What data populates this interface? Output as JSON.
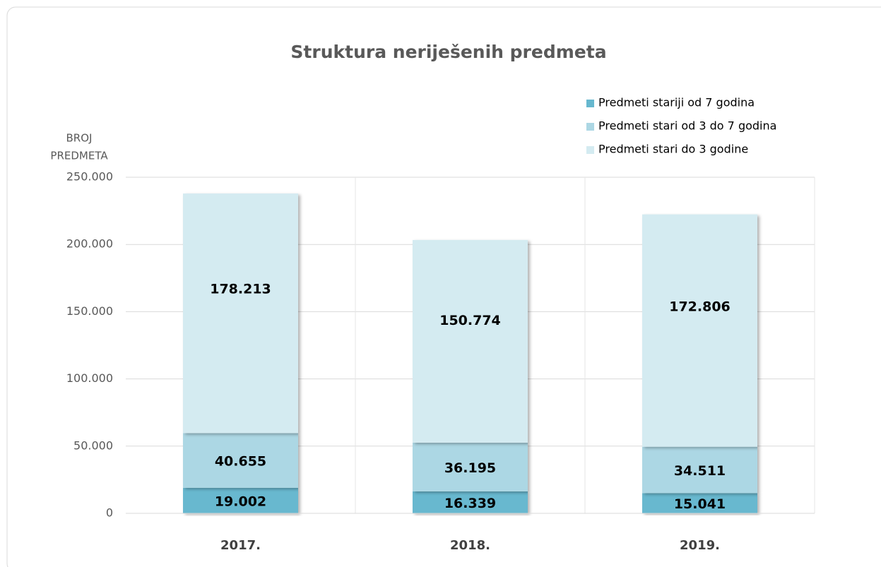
{
  "chart_data": {
    "type": "stacked_bar",
    "title": "Struktura neriješenih predmeta",
    "ylabel": [
      "BROJ",
      "PREDMETA"
    ],
    "categories": [
      "2017.",
      "2018.",
      "2019."
    ],
    "series": [
      {
        "name": "Predmeti stariji od 7 godina",
        "color": "#67b8cf",
        "values": [
          19002,
          16339,
          15041
        ],
        "value_labels": [
          "19.002",
          "16.339",
          "15.041"
        ]
      },
      {
        "name": "Predmeti stari od 3 do 7 godina",
        "color": "#acd7e4",
        "values": [
          40655,
          36195,
          34511
        ],
        "value_labels": [
          "40.655",
          "36.195",
          "34.511"
        ]
      },
      {
        "name": "Predmeti stari do 3 godine",
        "color": "#d4ebf1",
        "values": [
          178213,
          150774,
          172806
        ],
        "value_labels": [
          "178.213",
          "150.774",
          "172.806"
        ]
      }
    ],
    "ylim": [
      0,
      250000
    ],
    "yticks": [
      0,
      {
        "value": 50000,
        "label": "50.000"
      },
      {
        "value": 100000,
        "label": "100.000"
      },
      {
        "value": 150000,
        "label": "150.000"
      },
      {
        "value": 200000,
        "label": "200.000"
      },
      {
        "value": 250000,
        "label": "250.000"
      }
    ],
    "grid": true,
    "legend": "top-right"
  }
}
